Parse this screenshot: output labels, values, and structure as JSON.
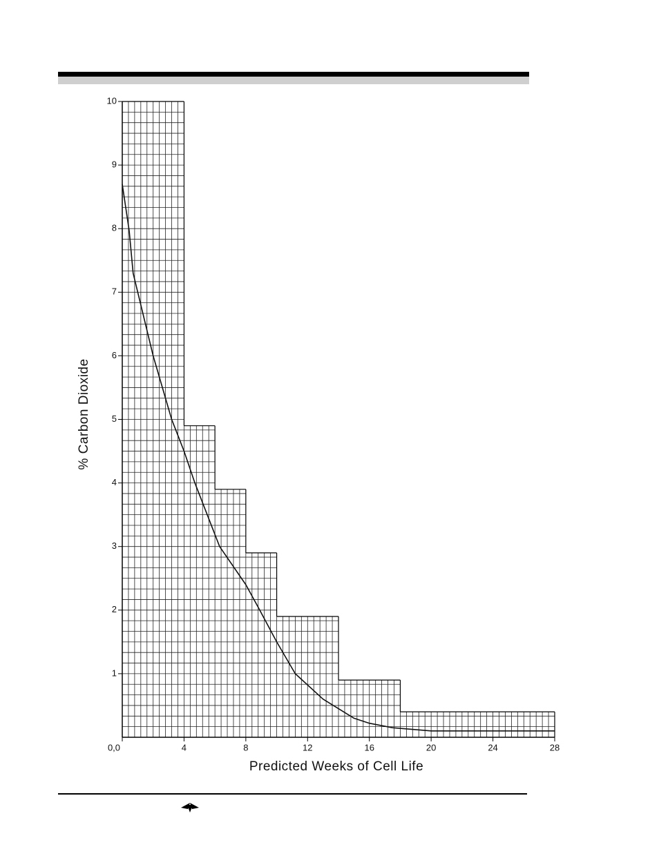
{
  "chart_data": {
    "type": "line",
    "xlabel": "Predicted Weeks of Cell Life",
    "ylabel": "% Carbon Dioxide",
    "x": [
      0,
      0.45,
      0.7,
      1,
      2,
      3.2,
      4,
      4.7,
      6.3,
      8,
      8.9,
      10,
      11.2,
      13,
      15,
      16,
      17.5,
      20,
      28
    ],
    "values": [
      8.7,
      7.96,
      7.3,
      7.0,
      6.0,
      5.0,
      4.5,
      4.0,
      3.0,
      2.4,
      2.0,
      1.5,
      1.0,
      0.6,
      0.3,
      0.22,
      0.15,
      0.1,
      0.1
    ],
    "color": "#111111",
    "xlim": [
      0,
      28
    ],
    "ylim": [
      0,
      10
    ],
    "xticks": [
      {
        "value": 0,
        "label": "0,0"
      },
      4,
      8,
      12,
      16,
      20,
      24,
      28
    ],
    "yticks": [
      1,
      2,
      3,
      4,
      5,
      6,
      7,
      8,
      9,
      10
    ],
    "grid_steps": [
      {
        "x": [
          0,
          4
        ],
        "y": 10
      },
      {
        "x": [
          4,
          6
        ],
        "y": 4.9
      },
      {
        "x": [
          6,
          8
        ],
        "y": 3.9
      },
      {
        "x": [
          8,
          10
        ],
        "y": 2.9
      },
      {
        "x": [
          10,
          14
        ],
        "y": 1.9
      },
      {
        "x": [
          14,
          18
        ],
        "y": 0.9
      },
      {
        "x": [
          18,
          28
        ],
        "y": 0.4
      }
    ]
  }
}
